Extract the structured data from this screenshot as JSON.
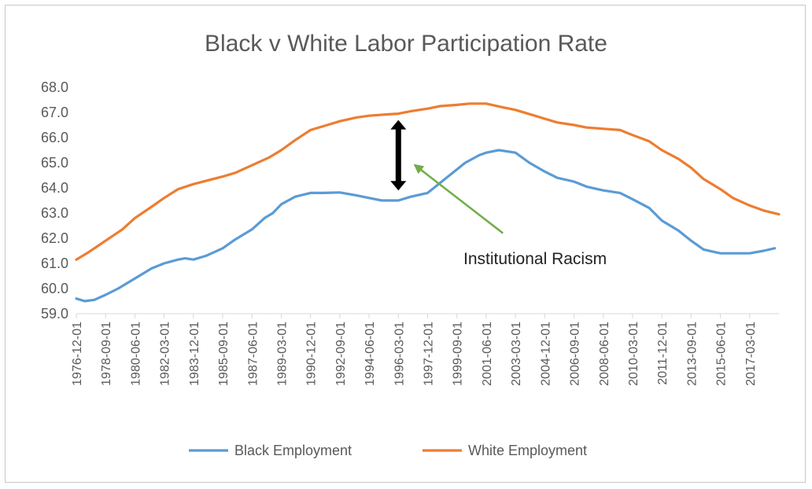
{
  "chart_data": {
    "type": "line",
    "title": "Black v White Labor Participation Rate",
    "xlabel": "",
    "ylabel": "",
    "ylim": [
      59.0,
      68.0
    ],
    "yticks": [
      "59.0",
      "60.0",
      "61.0",
      "62.0",
      "63.0",
      "64.0",
      "65.0",
      "66.0",
      "67.0",
      "68.0"
    ],
    "xlim": [
      "1976-12",
      "2018-12"
    ],
    "xticks": [
      "1976-12-01",
      "1978-09-01",
      "1980-06-01",
      "1982-03-01",
      "1983-12-01",
      "1985-09-01",
      "1987-06-01",
      "1989-03-01",
      "1990-12-01",
      "1992-09-01",
      "1994-06-01",
      "1996-03-01",
      "1997-12-01",
      "1999-09-01",
      "2001-06-01",
      "2003-03-01",
      "2004-12-01",
      "2006-09-01",
      "2008-06-01",
      "2010-03-01",
      "2011-12-01",
      "2013-09-01",
      "2015-06-01",
      "2017-03-01"
    ],
    "grid": false,
    "legend": "bottom",
    "series": [
      {
        "name": "Black Employment",
        "color": "#5b9bd5",
        "points": [
          [
            "1976-12",
            59.6
          ],
          [
            "1977-06",
            59.5
          ],
          [
            "1978-01",
            59.55
          ],
          [
            "1978-09",
            59.75
          ],
          [
            "1979-06",
            60.0
          ],
          [
            "1980-06",
            60.4
          ],
          [
            "1981-06",
            60.8
          ],
          [
            "1982-03",
            61.0
          ],
          [
            "1983-01",
            61.15
          ],
          [
            "1983-06",
            61.2
          ],
          [
            "1983-12",
            61.15
          ],
          [
            "1984-09",
            61.3
          ],
          [
            "1985-09",
            61.6
          ],
          [
            "1986-06",
            61.95
          ],
          [
            "1987-06",
            62.35
          ],
          [
            "1988-03",
            62.8
          ],
          [
            "1988-09",
            63.0
          ],
          [
            "1989-03",
            63.35
          ],
          [
            "1990-01",
            63.65
          ],
          [
            "1990-12",
            63.8
          ],
          [
            "1991-09",
            63.8
          ],
          [
            "1992-09",
            63.82
          ],
          [
            "1993-09",
            63.7
          ],
          [
            "1994-06",
            63.6
          ],
          [
            "1995-03",
            63.5
          ],
          [
            "1996-03",
            63.5
          ],
          [
            "1996-12",
            63.65
          ],
          [
            "1997-12",
            63.8
          ],
          [
            "1998-09",
            64.2
          ],
          [
            "1999-06",
            64.6
          ],
          [
            "2000-03",
            65.0
          ],
          [
            "2001-01",
            65.3
          ],
          [
            "2001-06",
            65.4
          ],
          [
            "2002-03",
            65.5
          ],
          [
            "2003-03",
            65.4
          ],
          [
            "2004-01",
            65.0
          ],
          [
            "2004-12",
            64.65
          ],
          [
            "2005-09",
            64.4
          ],
          [
            "2006-09",
            64.25
          ],
          [
            "2007-06",
            64.05
          ],
          [
            "2008-06",
            63.9
          ],
          [
            "2009-06",
            63.8
          ],
          [
            "2010-03",
            63.55
          ],
          [
            "2011-03",
            63.2
          ],
          [
            "2011-12",
            62.7
          ],
          [
            "2012-12",
            62.3
          ],
          [
            "2013-09",
            61.9
          ],
          [
            "2014-06",
            61.55
          ],
          [
            "2015-06",
            61.4
          ],
          [
            "2016-06",
            61.4
          ],
          [
            "2017-03",
            61.4
          ],
          [
            "2018-01",
            61.5
          ],
          [
            "2018-09",
            61.6
          ]
        ]
      },
      {
        "name": "White Employment",
        "color": "#ed7d31",
        "points": [
          [
            "1976-12",
            61.15
          ],
          [
            "1977-09",
            61.45
          ],
          [
            "1978-09",
            61.9
          ],
          [
            "1979-09",
            62.35
          ],
          [
            "1980-06",
            62.8
          ],
          [
            "1981-06",
            63.25
          ],
          [
            "1982-03",
            63.6
          ],
          [
            "1983-01",
            63.95
          ],
          [
            "1983-12",
            64.15
          ],
          [
            "1985-09",
            64.45
          ],
          [
            "1986-06",
            64.6
          ],
          [
            "1987-06",
            64.9
          ],
          [
            "1988-06",
            65.2
          ],
          [
            "1989-03",
            65.5
          ],
          [
            "1990-01",
            65.9
          ],
          [
            "1990-12",
            66.3
          ],
          [
            "1991-09",
            66.45
          ],
          [
            "1992-09",
            66.65
          ],
          [
            "1993-09",
            66.8
          ],
          [
            "1994-06",
            66.87
          ],
          [
            "1995-06",
            66.92
          ],
          [
            "1996-03",
            66.95
          ],
          [
            "1996-12",
            67.05
          ],
          [
            "1997-12",
            67.15
          ],
          [
            "1998-09",
            67.25
          ],
          [
            "1999-09",
            67.3
          ],
          [
            "2000-06",
            67.35
          ],
          [
            "2001-06",
            67.35
          ],
          [
            "2002-06",
            67.2
          ],
          [
            "2003-03",
            67.1
          ],
          [
            "2004-03",
            66.9
          ],
          [
            "2004-12",
            66.75
          ],
          [
            "2005-09",
            66.6
          ],
          [
            "2006-09",
            66.5
          ],
          [
            "2007-06",
            66.4
          ],
          [
            "2008-06",
            66.35
          ],
          [
            "2009-06",
            66.3
          ],
          [
            "2010-03",
            66.1
          ],
          [
            "2011-03",
            65.85
          ],
          [
            "2011-12",
            65.5
          ],
          [
            "2012-12",
            65.15
          ],
          [
            "2013-09",
            64.8
          ],
          [
            "2014-06",
            64.35
          ],
          [
            "2015-06",
            63.95
          ],
          [
            "2016-03",
            63.6
          ],
          [
            "2017-03",
            63.3
          ],
          [
            "2018-01",
            63.1
          ],
          [
            "2018-12",
            62.95
          ]
        ]
      }
    ],
    "annotations": [
      {
        "text": "Institutional Racism",
        "arrow_color": "#70ad47",
        "arrow_from": [
          "2002-06",
          62.2
        ],
        "arrow_to": [
          "1997-03",
          64.9
        ]
      },
      {
        "text": "",
        "arrow_color": "#000000",
        "double_arrow_x": "1996-03",
        "y_top": 66.7,
        "y_bottom": 63.9
      }
    ]
  }
}
